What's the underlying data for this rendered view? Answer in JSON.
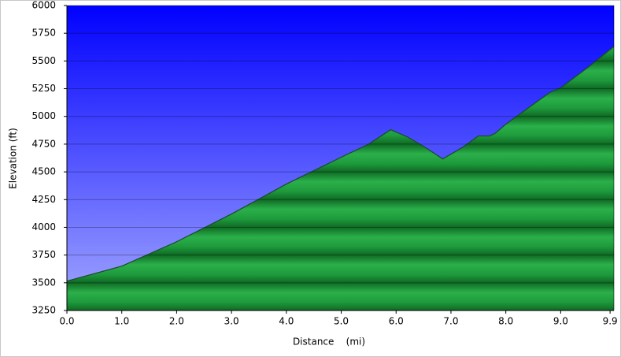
{
  "chart_data": {
    "type": "area",
    "xlabel": "Distance    (mi)",
    "ylabel": "Elevation (ft)",
    "x": [
      0,
      1.0,
      2.0,
      3.0,
      4.0,
      5.0,
      5.5,
      5.9,
      6.2,
      6.5,
      6.85,
      7.2,
      7.5,
      7.7,
      7.8,
      8.0,
      8.5,
      8.8,
      9.0,
      9.5,
      9.97
    ],
    "series": [
      {
        "name": "Elevation",
        "color": "#1e9a3c",
        "values": [
          3515,
          3650,
          3870,
          4120,
          4390,
          4632,
          4750,
          4880,
          4817,
          4731,
          4617,
          4717,
          4824,
          4824,
          4845,
          4930,
          5109,
          5215,
          5258,
          5444,
          5630
        ]
      }
    ],
    "xlim": [
      0,
      9.97
    ],
    "ylim": [
      3250,
      6000
    ],
    "xticks": [
      {
        "value": 0,
        "label": "0.0"
      },
      {
        "value": 1,
        "label": "1.0"
      },
      {
        "value": 2,
        "label": "2.0"
      },
      {
        "value": 3,
        "label": "3.0"
      },
      {
        "value": 4,
        "label": "4.0"
      },
      {
        "value": 5,
        "label": "5.0"
      },
      {
        "value": 6,
        "label": "6.0"
      },
      {
        "value": 7,
        "label": "7.0"
      },
      {
        "value": 8,
        "label": "8.0"
      },
      {
        "value": 9,
        "label": "9.0"
      },
      9.9
    ],
    "yticks": [
      3250,
      3500,
      3750,
      4000,
      4250,
      4500,
      4750,
      5000,
      5250,
      5500,
      5750,
      6000
    ],
    "grid": true
  }
}
